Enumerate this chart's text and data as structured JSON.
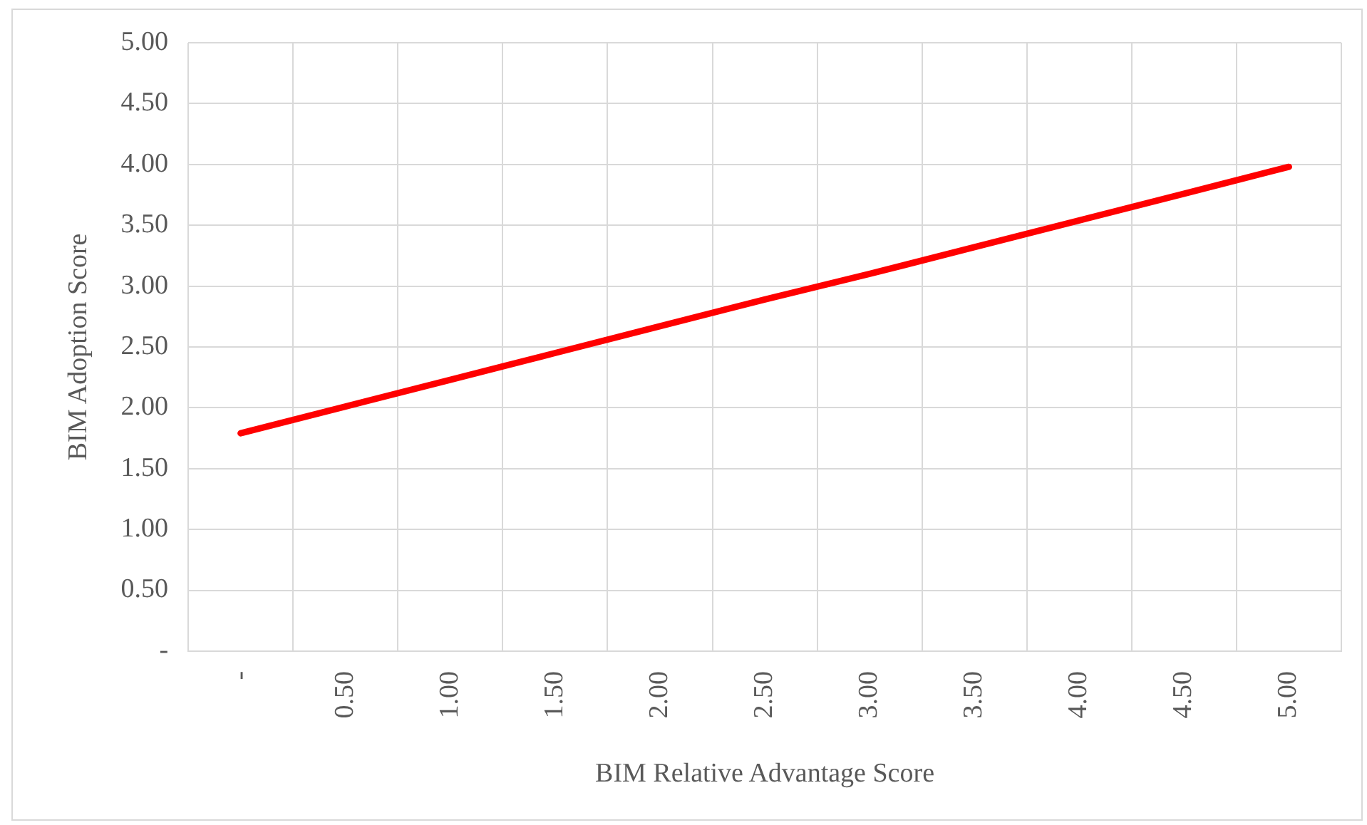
{
  "chart_data": {
    "type": "line",
    "xlabel": "BIM Relative Advantage Score",
    "ylabel": "BIM Adoption Score",
    "categories": [
      "-",
      "0.50",
      "1.00",
      "1.50",
      "2.00",
      "2.50",
      "3.00",
      "3.50",
      "4.00",
      "4.50",
      "5.00"
    ],
    "series": [
      {
        "color": "#ff0000",
        "values": [
          1.79,
          2.01,
          2.23,
          2.45,
          2.67,
          2.89,
          3.1,
          3.32,
          3.54,
          3.76,
          3.98
        ]
      }
    ],
    "ylim": [
      0,
      5
    ],
    "yticks": [
      {
        "value": 0,
        "label": "-"
      },
      {
        "value": 0.5,
        "label": "0.50"
      },
      {
        "value": 1,
        "label": "1.00"
      },
      {
        "value": 1.5,
        "label": "1.50"
      },
      {
        "value": 2,
        "label": "2.00"
      },
      {
        "value": 2.5,
        "label": "2.50"
      },
      {
        "value": 3,
        "label": "3.00"
      },
      {
        "value": 3.5,
        "label": "3.50"
      },
      {
        "value": 4,
        "label": "4.00"
      },
      {
        "value": 4.5,
        "label": "4.50"
      },
      {
        "value": 5,
        "label": "5.00"
      }
    ],
    "grid": true,
    "legend": false,
    "marker": "none",
    "line_style": "solid"
  }
}
